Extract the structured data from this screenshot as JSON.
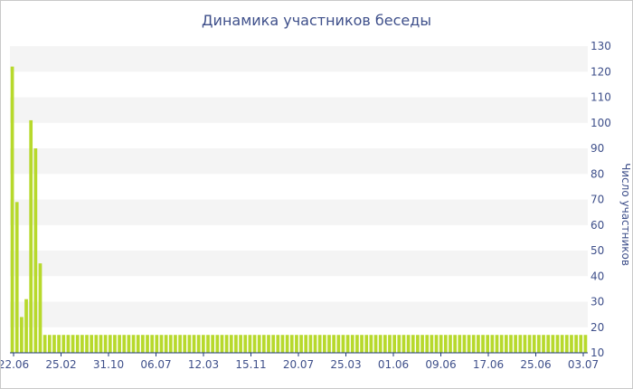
{
  "chart_data": {
    "type": "bar",
    "title": "Динамика участников беседы",
    "ylabel": "Число участников",
    "xlabel": "",
    "ylim": [
      10,
      130
    ],
    "y_ticks": [
      10,
      20,
      30,
      40,
      50,
      60,
      70,
      80,
      90,
      100,
      110,
      120,
      130
    ],
    "x_tick_labels": [
      "22.06",
      "25.02",
      "31.10",
      "06.07",
      "12.03",
      "15.11",
      "20.07",
      "25.03",
      "01.06",
      "09.06",
      "17.06",
      "25.06",
      "03.07"
    ],
    "values": [
      122,
      69,
      24,
      31,
      101,
      90,
      45,
      17,
      17,
      17,
      17,
      17,
      17,
      17,
      17,
      17,
      17,
      17,
      17,
      17,
      17,
      17,
      17,
      17,
      17,
      17,
      17,
      17,
      17,
      17,
      17,
      17,
      17,
      17,
      17,
      17,
      17,
      17,
      17,
      17,
      17,
      17,
      17,
      17,
      17,
      17,
      17,
      17,
      17,
      17,
      17,
      17,
      17,
      17,
      17,
      17,
      17,
      17,
      17,
      17,
      17,
      17,
      17,
      17,
      17,
      17,
      17,
      17,
      17,
      17,
      17,
      17,
      17,
      17,
      17,
      17,
      17,
      17,
      17,
      17,
      17,
      17,
      17,
      17,
      17,
      17,
      17,
      17,
      17,
      17,
      17,
      17,
      17,
      17,
      17,
      17,
      17,
      17,
      17,
      17,
      17,
      17,
      17,
      17,
      17,
      17,
      17,
      17,
      17,
      17,
      17,
      17,
      17,
      17,
      17,
      17,
      17,
      17,
      17,
      17,
      17,
      17,
      17,
      17
    ],
    "colors": {
      "bar": "#b7d92c",
      "band": "#f4f4f4",
      "axis_text": "#3e4f8a",
      "baseline": "#1f3a7a"
    },
    "grid": "alternating horizontal bands",
    "y_axis_position": "right"
  }
}
